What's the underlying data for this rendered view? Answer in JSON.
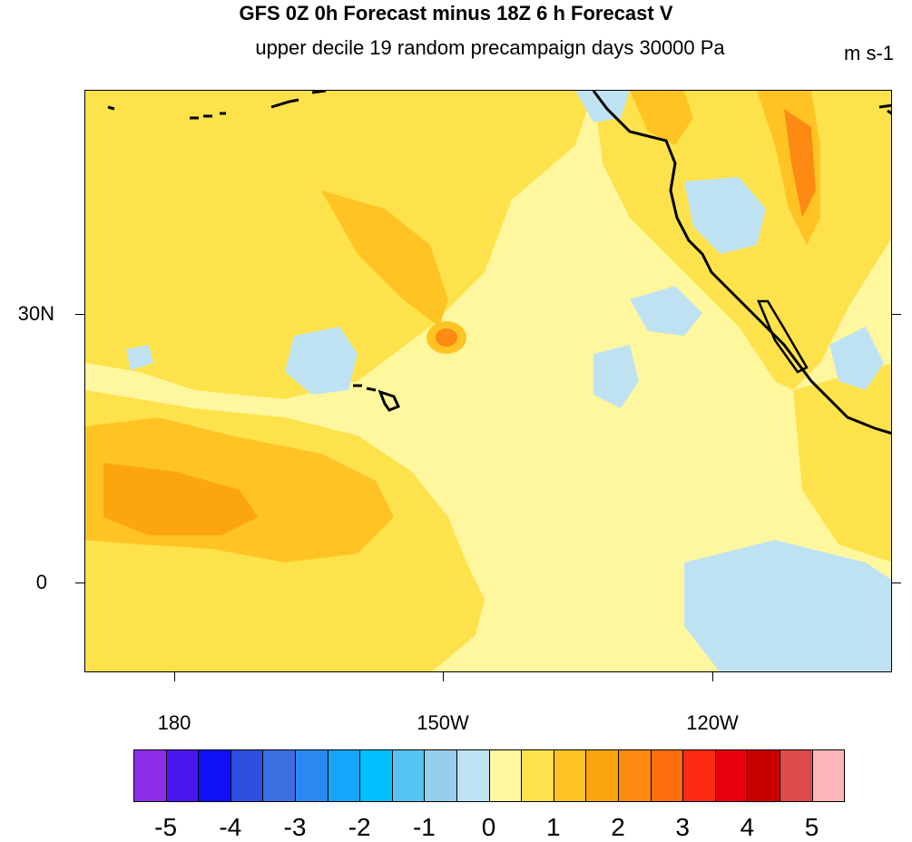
{
  "title": "GFS 0Z 0h Forecast minus 18Z 6 h Forecast V",
  "subtitle": "upper decile 19 random precampaign days 30000 Pa",
  "units": "m s-1",
  "lat_labels": [
    "30N",
    "0"
  ],
  "lon_labels": [
    "180",
    "150W",
    "120W"
  ],
  "legend": {
    "colors": [
      "#8c2ee8",
      "#4a16f0",
      "#1010f7",
      "#2e4fe0",
      "#3a6fe0",
      "#2a8af2",
      "#16a6fb",
      "#00c0ff",
      "#56c4f2",
      "#97cdec",
      "#bfe2f3",
      "#fff79e",
      "#fde24b",
      "#ffc424",
      "#fda50e",
      "#fd8a12",
      "#fd6e0c",
      "#ff2a12",
      "#e8000e",
      "#c90000",
      "#dc4a4a",
      "#ffb6b8"
    ],
    "labels": [
      "-5",
      "-4",
      "-3",
      "-2",
      "-1",
      "0",
      "1",
      "2",
      "3",
      "4",
      "5"
    ]
  },
  "colors": {
    "background_field": "#fff79e",
    "light_positive": "#fde24b",
    "mid_positive": "#ffc424",
    "strong_positive": "#fd8a12",
    "weak_negative": "#bfe2f3"
  }
}
